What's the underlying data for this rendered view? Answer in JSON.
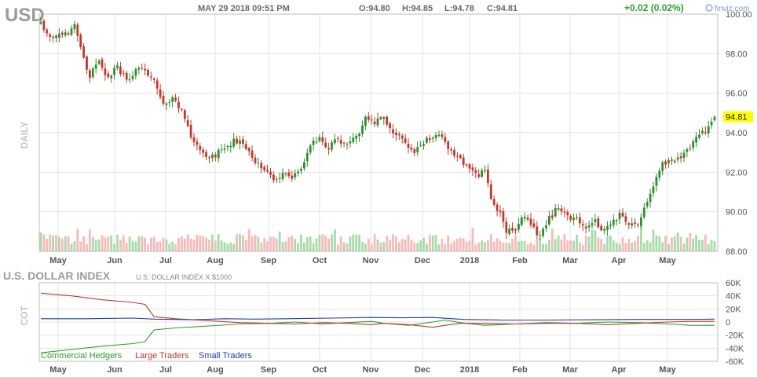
{
  "header": {
    "ticker": "USD",
    "datetime": "MAY 29 2018 09:51 PM",
    "open": "O:94.80",
    "high": "H:94.85",
    "low": "L:94.78",
    "close": "C:94.81",
    "change": "+0.02 (0.02%)",
    "brand": "finviz.com"
  },
  "colors": {
    "up": "#2f8f2f",
    "down": "#c0392b",
    "vol_up": "#a8dba8",
    "vol_down": "#f7b9b9",
    "grid": "#e3e3e3",
    "commercial": "#2ca02c",
    "large": "#c0392b",
    "small": "#1f3fa0",
    "last_bg": "#ffff00"
  },
  "chart_data": [
    {
      "type": "candlestick",
      "side_label": "DAILY",
      "x_ticks": [
        "May",
        "Jun",
        "Jul",
        "Aug",
        "Sep",
        "Oct",
        "Nov",
        "Dec",
        "2018",
        "Feb",
        "Mar",
        "Apr",
        "May"
      ],
      "y_ticks": [
        "100.00",
        "98.00",
        "96.00",
        "94.00",
        "92.00",
        "90.00",
        "88.00"
      ],
      "ylim": [
        88,
        100
      ],
      "last_price": "94.81",
      "close_path": [
        [
          0,
          99.7
        ],
        [
          2,
          99.0
        ],
        [
          4,
          98.9
        ],
        [
          7,
          99.1
        ],
        [
          9,
          98.8
        ],
        [
          11,
          99.5
        ],
        [
          13,
          98.2
        ],
        [
          16,
          96.9
        ],
        [
          19,
          97.5
        ],
        [
          22,
          96.8
        ],
        [
          25,
          97.3
        ],
        [
          28,
          96.7
        ],
        [
          31,
          97.2
        ],
        [
          34,
          97.1
        ],
        [
          37,
          96.6
        ],
        [
          40,
          95.3
        ],
        [
          43,
          95.9
        ],
        [
          46,
          95.1
        ],
        [
          49,
          93.8
        ],
        [
          52,
          93.3
        ],
        [
          55,
          92.6
        ],
        [
          58,
          93.0
        ],
        [
          61,
          93.4
        ],
        [
          64,
          93.6
        ],
        [
          67,
          93.2
        ],
        [
          70,
          92.6
        ],
        [
          73,
          92.2
        ],
        [
          76,
          91.6
        ],
        [
          79,
          91.9
        ],
        [
          82,
          91.6
        ],
        [
          85,
          92.3
        ],
        [
          88,
          93.3
        ],
        [
          91,
          93.7
        ],
        [
          94,
          93.3
        ],
        [
          97,
          93.6
        ],
        [
          100,
          93.5
        ],
        [
          103,
          93.7
        ],
        [
          106,
          94.8
        ],
        [
          109,
          94.6
        ],
        [
          112,
          94.8
        ],
        [
          115,
          93.9
        ],
        [
          118,
          93.8
        ],
        [
          121,
          93.0
        ],
        [
          124,
          93.2
        ],
        [
          127,
          93.8
        ],
        [
          130,
          93.9
        ],
        [
          133,
          93.1
        ],
        [
          136,
          92.8
        ],
        [
          139,
          92.4
        ],
        [
          142,
          91.8
        ],
        [
          145,
          92.2
        ],
        [
          147,
          90.6
        ],
        [
          150,
          89.9
        ],
        [
          152,
          89.1
        ],
        [
          155,
          88.9
        ],
        [
          157,
          89.7
        ],
        [
          160,
          89.3
        ],
        [
          163,
          88.8
        ],
        [
          166,
          89.7
        ],
        [
          169,
          90.2
        ],
        [
          172,
          89.8
        ],
        [
          175,
          89.7
        ],
        [
          178,
          89.3
        ],
        [
          181,
          89.6
        ],
        [
          183,
          88.9
        ],
        [
          186,
          89.4
        ],
        [
          189,
          89.8
        ],
        [
          192,
          89.3
        ],
        [
          195,
          89.4
        ],
        [
          197,
          90.3
        ],
        [
          200,
          91.3
        ],
        [
          203,
          92.4
        ],
        [
          206,
          92.6
        ],
        [
          209,
          92.7
        ],
        [
          212,
          93.3
        ],
        [
          215,
          93.8
        ],
        [
          218,
          94.3
        ],
        [
          220,
          94.81
        ]
      ]
    },
    {
      "type": "line",
      "title": "U.S. DOLLAR INDEX",
      "subtitle": "U.S. DOLLAR INDEX X $1000",
      "side_label": "COT",
      "x_ticks": [
        "May",
        "Jun",
        "Jul",
        "Aug",
        "Sep",
        "Oct",
        "Nov",
        "Dec",
        "2018",
        "Feb",
        "Mar",
        "Apr",
        "May"
      ],
      "y_ticks": [
        "60K",
        "40K",
        "20K",
        "0",
        "-20K",
        "-40K",
        "-60K"
      ],
      "ylim": [
        -60000,
        60000
      ],
      "series": [
        {
          "name": "Commercial Hedgers",
          "points": [
            [
              0,
              -47000
            ],
            [
              10,
              -42000
            ],
            [
              20,
              -37000
            ],
            [
              30,
              -33000
            ],
            [
              34,
              -30000
            ],
            [
              37,
              -12000
            ],
            [
              44,
              -9000
            ],
            [
              55,
              -6000
            ],
            [
              65,
              -3000
            ],
            [
              75,
              -2000
            ],
            [
              83,
              0
            ],
            [
              92,
              -3000
            ],
            [
              100,
              -1000
            ],
            [
              108,
              1000
            ],
            [
              112,
              -2000
            ],
            [
              120,
              -5000
            ],
            [
              128,
              0
            ],
            [
              132,
              3000
            ],
            [
              137,
              -1000
            ],
            [
              145,
              -5000
            ],
            [
              155,
              -3000
            ],
            [
              165,
              -1000
            ],
            [
              175,
              -2000
            ],
            [
              185,
              0
            ],
            [
              195,
              -1000
            ],
            [
              205,
              -3000
            ],
            [
              212,
              -5000
            ],
            [
              220,
              -5000
            ]
          ]
        },
        {
          "name": "Large Traders",
          "points": [
            [
              0,
              44000
            ],
            [
              10,
              40000
            ],
            [
              20,
              34000
            ],
            [
              30,
              30000
            ],
            [
              34,
              27000
            ],
            [
              37,
              8000
            ],
            [
              44,
              5000
            ],
            [
              55,
              2000
            ],
            [
              65,
              -1000
            ],
            [
              75,
              -2000
            ],
            [
              83,
              -3000
            ],
            [
              92,
              -1000
            ],
            [
              100,
              -2000
            ],
            [
              108,
              -4000
            ],
            [
              112,
              -2000
            ],
            [
              120,
              -4000
            ],
            [
              128,
              -8000
            ],
            [
              132,
              -5000
            ],
            [
              137,
              -2000
            ],
            [
              145,
              -2000
            ],
            [
              155,
              -3000
            ],
            [
              165,
              -2000
            ],
            [
              175,
              -2000
            ],
            [
              185,
              -4000
            ],
            [
              195,
              -2000
            ],
            [
              205,
              0
            ],
            [
              212,
              1000
            ],
            [
              220,
              1000
            ]
          ]
        },
        {
          "name": "Small Traders",
          "points": [
            [
              0,
              5000
            ],
            [
              15,
              5000
            ],
            [
              30,
              6000
            ],
            [
              37,
              4500
            ],
            [
              50,
              3500
            ],
            [
              60,
              5000
            ],
            [
              70,
              4500
            ],
            [
              80,
              5000
            ],
            [
              95,
              6000
            ],
            [
              108,
              7000
            ],
            [
              118,
              6500
            ],
            [
              128,
              7000
            ],
            [
              138,
              4000
            ],
            [
              150,
              3000
            ],
            [
              165,
              3000
            ],
            [
              180,
              3500
            ],
            [
              195,
              4000
            ],
            [
              210,
              4000
            ],
            [
              220,
              4500
            ]
          ]
        }
      ]
    }
  ]
}
